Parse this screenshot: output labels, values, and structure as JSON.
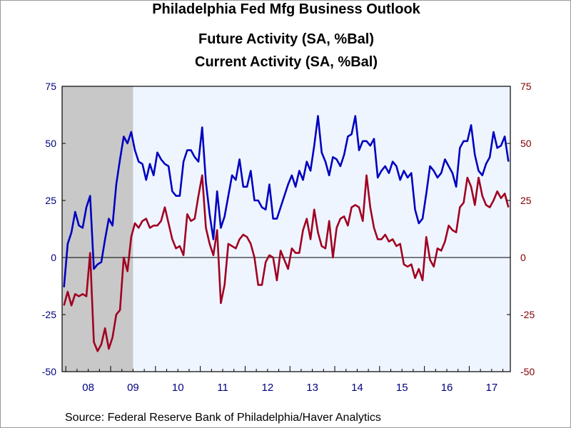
{
  "chart_data": {
    "type": "line",
    "title": "Philadelphia Fed Mfg Business Outlook",
    "source": "Source:  Federal Reserve Bank of Philadelphia/Haver Analytics",
    "x_axis": {
      "type": "time",
      "range": [
        "2007-12",
        "2017-11"
      ],
      "tick_labels": [
        "08",
        "09",
        "10",
        "11",
        "12",
        "13",
        "14",
        "15",
        "16",
        "17"
      ]
    },
    "y_axis_left": {
      "range": [
        -50,
        75
      ],
      "ticks": [
        75,
        50,
        25,
        0,
        -25,
        -50
      ],
      "tick_labels": [
        "75",
        "50",
        "25",
        "0",
        "-25",
        "-50"
      ]
    },
    "y_axis_right": {
      "range": [
        -50,
        75
      ],
      "ticks": [
        75,
        50,
        25,
        0,
        -25,
        -50
      ],
      "tick_labels": [
        "75",
        "50",
        "25",
        "0",
        "-25",
        "-50"
      ]
    },
    "zero_line": true,
    "grid": false,
    "legend": "top",
    "shaded_regions": [
      {
        "start": "2007-12",
        "end": "2009-06",
        "color": "#c8c8c8"
      }
    ],
    "plot_background": "#eef5ff",
    "series": [
      {
        "name": "Future Activity (SA, %Bal)",
        "color": "#0000c0",
        "start": "2007-12",
        "frequency": "monthly",
        "values": [
          -13,
          6,
          11,
          20,
          14,
          13,
          22,
          27,
          -5,
          -3,
          -2,
          8,
          17,
          14,
          32,
          43,
          53,
          50,
          55,
          47,
          42,
          41,
          34,
          41,
          36,
          46,
          43,
          41,
          40,
          29,
          27,
          27,
          42,
          47,
          47,
          44,
          42,
          57,
          33,
          19,
          8,
          29,
          13,
          18,
          27,
          36,
          34,
          43,
          31,
          31,
          38,
          25,
          25,
          22,
          21,
          32,
          17,
          17,
          22,
          27,
          32,
          36,
          31,
          38,
          34,
          42,
          38,
          49,
          62,
          46,
          42,
          36,
          44,
          43,
          40,
          45,
          53,
          54,
          62,
          47,
          51,
          51,
          49,
          52,
          35,
          38,
          40,
          37,
          42,
          40,
          34,
          38,
          35,
          37,
          21,
          15,
          17,
          28,
          40,
          38,
          35,
          37,
          43,
          40,
          37,
          31,
          48,
          51,
          51,
          58,
          45,
          38,
          36,
          41,
          44,
          55,
          48,
          49,
          53,
          42
        ]
      },
      {
        "name": "Current Activity (SA, %Bal)",
        "color": "#a00020",
        "start": "2007-12",
        "frequency": "monthly",
        "values": [
          -21,
          -15,
          -21,
          -16,
          -17,
          -16,
          -17,
          2,
          -37,
          -41,
          -38,
          -31,
          -40,
          -35,
          -25,
          -23,
          0,
          -6,
          9,
          15,
          13,
          16,
          17,
          13,
          14,
          14,
          16,
          22,
          15,
          8,
          4,
          5,
          1,
          19,
          16,
          17,
          27,
          36,
          13,
          6,
          1,
          12,
          -20,
          -12,
          6,
          5,
          4,
          8,
          10,
          9,
          6,
          0,
          -12,
          -12,
          -2,
          1,
          0,
          -10,
          3,
          -1,
          -5,
          4,
          2,
          2,
          12,
          17,
          8,
          21,
          11,
          5,
          4,
          16,
          0,
          13,
          17,
          18,
          14,
          22,
          23,
          22,
          16,
          36,
          22,
          13,
          8,
          8,
          10,
          7,
          8,
          5,
          6,
          -3,
          -4,
          -3,
          -9,
          -5,
          -10,
          9,
          -1,
          -4,
          4,
          3,
          7,
          14,
          12,
          11,
          22,
          24,
          35,
          31,
          23,
          35,
          27,
          23,
          22,
          25,
          29,
          26,
          28,
          22
        ]
      }
    ]
  }
}
